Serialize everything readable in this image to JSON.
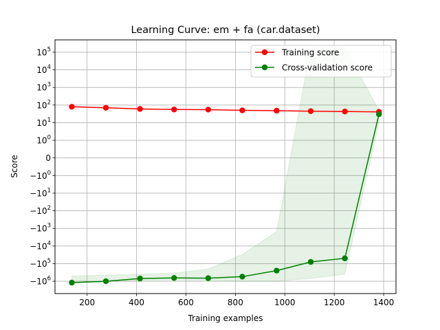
{
  "chart_data": {
    "type": "line",
    "title": "Learning Curve: em + fa (car.dataset)",
    "xlabel": "Training examples",
    "ylabel": "Score",
    "xlim": [
      70,
      1450
    ],
    "yscale": "symlog",
    "ylim": [
      -5000000,
      500000
    ],
    "x_ticks": [
      200,
      400,
      600,
      800,
      1000,
      1200,
      1400
    ],
    "y_ticks": [
      {
        "value": 100000,
        "base": "10",
        "exp": "5"
      },
      {
        "value": 10000,
        "base": "10",
        "exp": "4"
      },
      {
        "value": 1000,
        "base": "10",
        "exp": "3"
      },
      {
        "value": 100,
        "base": "10",
        "exp": "2"
      },
      {
        "value": 10,
        "base": "10",
        "exp": "1"
      },
      {
        "value": 1,
        "base": "10",
        "exp": "0"
      },
      {
        "value": 0,
        "base": "0",
        "exp": ""
      },
      {
        "value": -1,
        "base": "−10",
        "exp": "0"
      },
      {
        "value": -10,
        "base": "−10",
        "exp": "1"
      },
      {
        "value": -100,
        "base": "−10",
        "exp": "2"
      },
      {
        "value": -1000,
        "base": "−10",
        "exp": "3"
      },
      {
        "value": -10000,
        "base": "−10",
        "exp": "4"
      },
      {
        "value": -100000,
        "base": "−10",
        "exp": "5"
      },
      {
        "value": -1000000,
        "base": "−10",
        "exp": "6"
      }
    ],
    "grid": true,
    "legend": "upper right",
    "x": [
      138,
      276,
      414,
      552,
      690,
      828,
      967,
      1105,
      1243,
      1381
    ],
    "series": [
      {
        "name": "Training score",
        "color": "#ff0000",
        "values": [
          80,
          70,
          60,
          56,
          55,
          50,
          48,
          45,
          43,
          41
        ]
      },
      {
        "name": "Cross-validation score",
        "color": "#008000",
        "values": [
          -1200000,
          -1000000,
          -700000,
          -650000,
          -670000,
          -550000,
          -250000,
          -80000,
          -50000,
          30
        ],
        "band_color": "#008000",
        "band_upper": [
          -500000,
          -450000,
          -400000,
          -350000,
          -200000,
          -30000,
          -1500,
          200000,
          200000,
          50
        ],
        "band_lower": [
          -1200000,
          -1100000,
          -900000,
          -850000,
          -900000,
          -1000000,
          -1000000,
          -700000,
          -400000,
          10
        ]
      }
    ]
  }
}
